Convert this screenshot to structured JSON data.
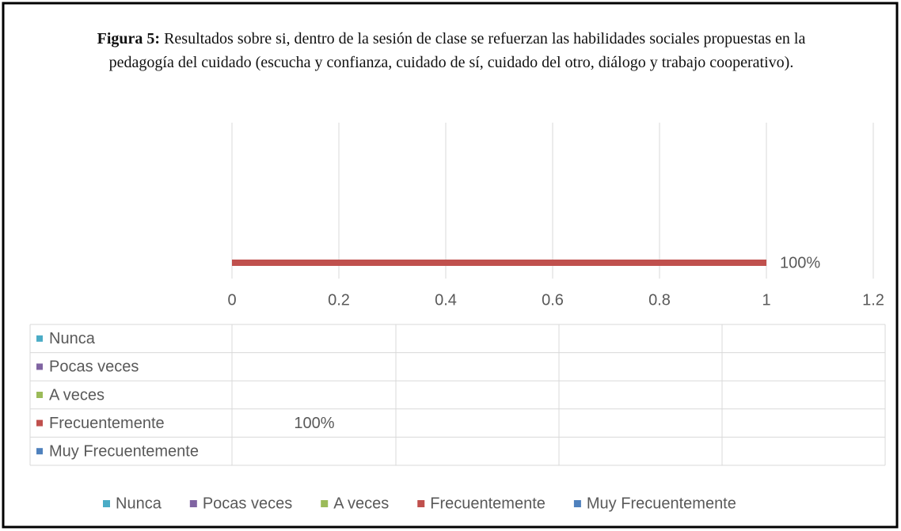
{
  "chart_data": {
    "type": "bar",
    "orientation": "horizontal",
    "title_label": "Figura 5:",
    "title": "Resultados sobre si, dentro de la sesión de clase se refuerzan las habilidades sociales propuestas en la pedagogía del cuidado (escucha y confianza, cuidado de sí, cuidado del otro, diálogo y trabajo cooperativo).",
    "series": [
      {
        "name": "Nunca",
        "color": "#4bacc6",
        "values": [
          null
        ]
      },
      {
        "name": "Pocas veces",
        "color": "#8064a2",
        "values": [
          null
        ]
      },
      {
        "name": "A veces",
        "color": "#9bbb59",
        "values": [
          null
        ]
      },
      {
        "name": "Frecuentemente",
        "color": "#c0504d",
        "values": [
          1
        ],
        "value_labels": [
          "100%"
        ]
      },
      {
        "name": "Muy Frecuentemente",
        "color": "#4f81bd",
        "values": [
          null
        ]
      }
    ],
    "xlim": [
      0,
      1.2
    ],
    "xticks": [
      0,
      0.2,
      0.4,
      0.6,
      0.8,
      1,
      1.2
    ],
    "grid": true,
    "legend": "bottom",
    "data_table": true
  }
}
